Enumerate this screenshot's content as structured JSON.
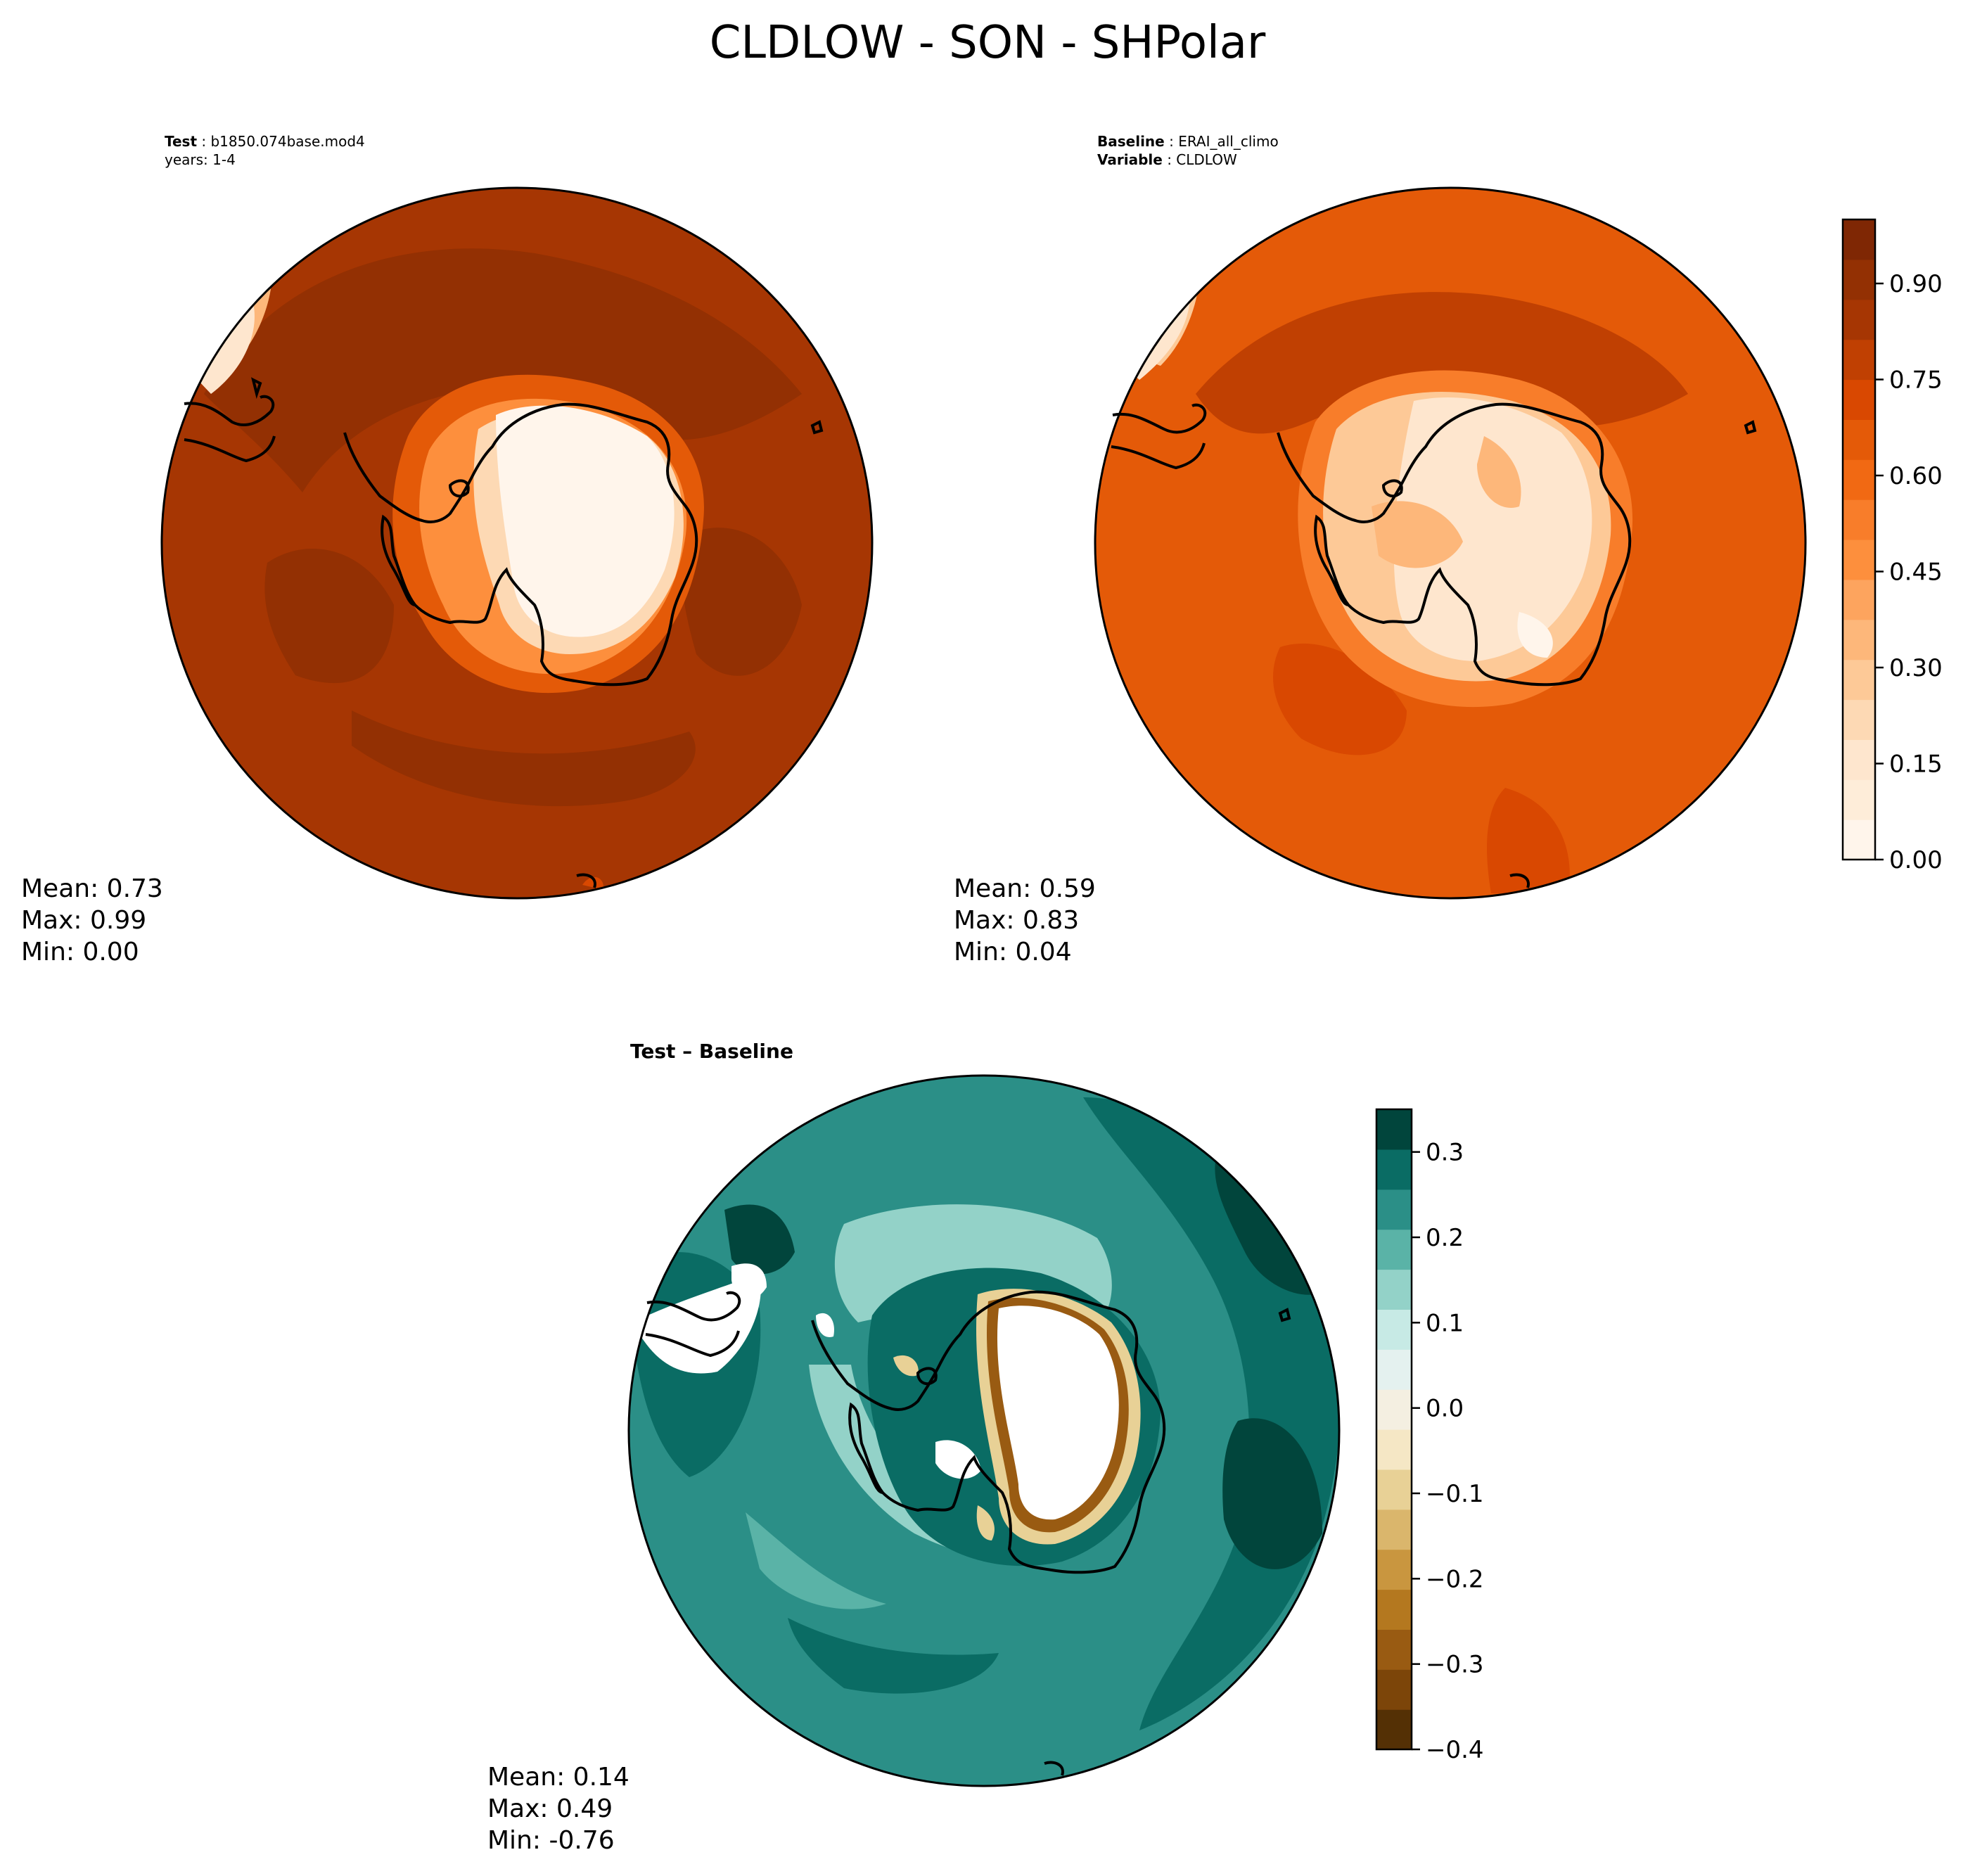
{
  "figure": {
    "title": "CLDLOW - SON - SHPolar"
  },
  "panels": {
    "test": {
      "label_key": "Test",
      "label_value": "b1850.074base.mod4",
      "years_line": "years: 1-4",
      "mean_label": "Mean:  0.73",
      "max_label": "Max:  0.99",
      "min_label": "Min:  0.00"
    },
    "baseline": {
      "label_key": "Baseline",
      "label_value": "ERAI_all_climo",
      "var_key": "Variable",
      "var_value": "CLDLOW",
      "mean_label": "Mean:  0.59",
      "max_label": "Max:  0.83",
      "min_label": "Min:  0.04"
    },
    "diff": {
      "label": "Test – Baseline",
      "mean_label": "Mean:  0.14",
      "max_label": "Max:  0.49",
      "min_label": "Min: -0.76"
    }
  },
  "chart_data": [
    {
      "type": "heatmap",
      "projection": "south-polar-stereographic",
      "name": "Test",
      "variable": "CLDLOW",
      "season": "SON",
      "stats": {
        "mean": 0.73,
        "max": 0.99,
        "min": 0.0
      }
    },
    {
      "type": "heatmap",
      "projection": "south-polar-stereographic",
      "name": "Baseline",
      "variable": "CLDLOW",
      "season": "SON",
      "stats": {
        "mean": 0.59,
        "max": 0.83,
        "min": 0.04
      }
    },
    {
      "type": "heatmap",
      "projection": "south-polar-stereographic",
      "name": "Test - Baseline",
      "variable": "CLDLOW",
      "season": "SON",
      "stats": {
        "mean": 0.14,
        "max": 0.49,
        "min": -0.76
      }
    }
  ],
  "colorbars": {
    "main": {
      "range": [
        0.0,
        1.0
      ],
      "ticks": [
        0.0,
        0.15,
        0.3,
        0.45,
        0.6,
        0.75,
        0.9
      ],
      "tick_labels": [
        "0.00",
        "0.15",
        "0.30",
        "0.45",
        "0.60",
        "0.75",
        "0.90"
      ],
      "colors": [
        "#fff5eb",
        "#feedd9",
        "#fee6ce",
        "#fdd9b4",
        "#fdc997",
        "#fdb77a",
        "#fda45e",
        "#fd8f3d",
        "#f87d2a",
        "#f16913",
        "#e45a08",
        "#d94801",
        "#c04002",
        "#a63603",
        "#933003",
        "#7f2704"
      ]
    },
    "diff": {
      "range": [
        -0.4,
        0.35
      ],
      "ticks": [
        -0.4,
        -0.3,
        -0.2,
        -0.1,
        0.0,
        0.1,
        0.2,
        0.3
      ],
      "tick_labels": [
        "−0.4",
        "−0.3",
        "−0.2",
        "−0.1",
        "0.0",
        "0.1",
        "0.2",
        "0.3"
      ],
      "colors": [
        "#543005",
        "#7c4509",
        "#995b12",
        "#b4781f",
        "#c9963f",
        "#dab66c",
        "#e8d196",
        "#f5e7c5",
        "#f4efe1",
        "#e4f1ef",
        "#c7eae5",
        "#93d2c8",
        "#5ab3a7",
        "#2b8f87",
        "#0a6c64",
        "#01453c"
      ]
    }
  }
}
